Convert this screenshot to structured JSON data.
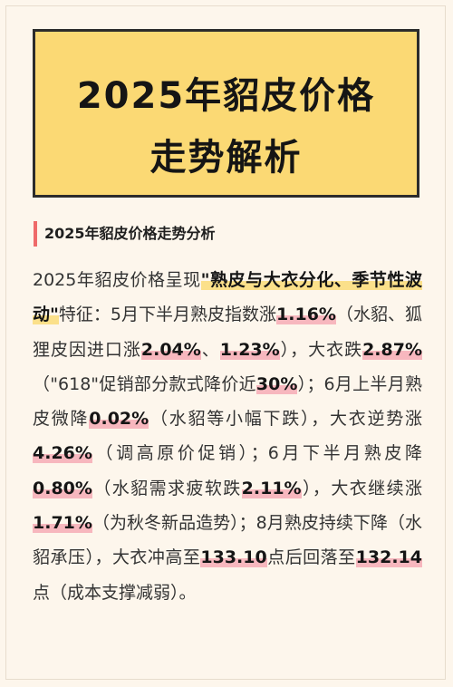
{
  "title": {
    "line1": "2025年貂皮价格",
    "line2": "走势解析"
  },
  "section_heading": "2025年貂皮价格走势分析",
  "paragraph": [
    {
      "t": "2025年貂皮价格呈现",
      "s": "plain"
    },
    {
      "t": "\"熟皮与大衣分化、季节性波动\"",
      "s": "bold"
    },
    {
      "t": "特征：5月下半月熟皮指数涨",
      "s": "plain"
    },
    {
      "t": "1.16%",
      "s": "pink"
    },
    {
      "t": "（水貂、狐狸皮因进口涨",
      "s": "plain"
    },
    {
      "t": "2.04%",
      "s": "pink"
    },
    {
      "t": "、",
      "s": "plain"
    },
    {
      "t": "1.23%",
      "s": "pink"
    },
    {
      "t": "），大衣跌",
      "s": "plain"
    },
    {
      "t": "2.87%",
      "s": "pink"
    },
    {
      "t": "（\"618\"促销部分款式降价近",
      "s": "plain"
    },
    {
      "t": "30%",
      "s": "pink"
    },
    {
      "t": "）；6月上半月熟皮微降",
      "s": "plain"
    },
    {
      "t": "0.02%",
      "s": "pink"
    },
    {
      "t": "（水貂等小幅下跌），大衣逆势涨",
      "s": "plain"
    },
    {
      "t": "4.26%",
      "s": "pink"
    },
    {
      "t": "（调高原价促销）；6月下半月熟皮降",
      "s": "plain"
    },
    {
      "t": "0.80%",
      "s": "pink"
    },
    {
      "t": "（水貂需求疲软跌",
      "s": "plain"
    },
    {
      "t": "2.11%",
      "s": "pink"
    },
    {
      "t": "），大衣继续涨",
      "s": "plain"
    },
    {
      "t": "1.71%",
      "s": "pink"
    },
    {
      "t": "（为秋冬新品造势）；8月熟皮持续下降（水貂承压），大衣冲高至",
      "s": "plain"
    },
    {
      "t": "133.10",
      "s": "pink"
    },
    {
      "t": "点后回落至",
      "s": "plain"
    },
    {
      "t": "132.14",
      "s": "pink"
    },
    {
      "t": "点（成本支撑减弱）。",
      "s": "plain"
    }
  ]
}
